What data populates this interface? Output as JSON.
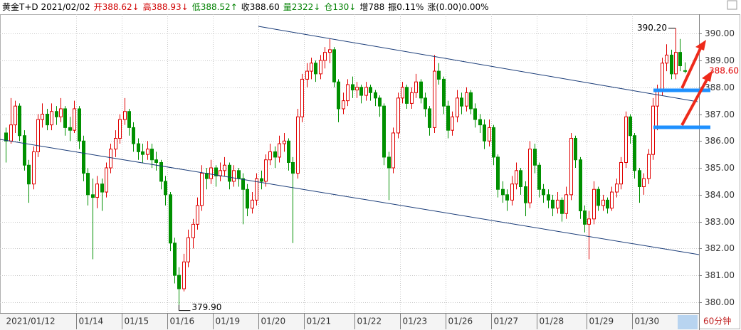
{
  "chart_data": {
    "type": "candlestick",
    "header": [
      {
        "text": "黄金T+D 2021/02/02",
        "color": "#000000"
      },
      {
        "text": "开388.62↓",
        "color": "#d00000"
      },
      {
        "text": "高388.93↓",
        "color": "#d00000"
      },
      {
        "text": "低388.52↑",
        "color": "#008000"
      },
      {
        "text": "收388.60",
        "color": "#000000"
      },
      {
        "text": "量2322↓",
        "color": "#008000"
      },
      {
        "text": "仓130↓",
        "color": "#008000"
      },
      {
        "text": "增788",
        "color": "#000000"
      },
      {
        "text": "振0.11%",
        "color": "#000000"
      },
      {
        "text": "涨(0.00)0.00%",
        "color": "#000000"
      }
    ],
    "period": "60分钟",
    "high_label": "390.20",
    "low_label": "379.90",
    "last_price_label": "388.60",
    "up_color": "#e00000",
    "down_color": "#009000",
    "ylim": [
      379.6,
      390.72
    ],
    "yticks": [
      {
        "value": 380,
        "label": "380.00"
      },
      {
        "value": 381,
        "label": "381.00"
      },
      {
        "value": 382,
        "label": "382.00"
      },
      {
        "value": 383,
        "label": "383.00"
      },
      {
        "value": 384,
        "label": "384.00"
      },
      {
        "value": 385,
        "label": "385.00"
      },
      {
        "value": 386,
        "label": "386.00"
      },
      {
        "value": 387,
        "label": "387.00"
      },
      {
        "value": 388,
        "label": "388.00"
      },
      {
        "value": 389,
        "label": "389.00"
      },
      {
        "value": 390,
        "label": "390.00"
      }
    ],
    "grid": true,
    "categories": [
      "2021/01/12",
      null,
      null,
      null,
      null,
      null,
      null,
      null,
      null,
      null,
      null,
      null,
      null,
      null,
      null,
      null,
      "01/14",
      null,
      null,
      null,
      null,
      null,
      null,
      null,
      null,
      null,
      "01/15",
      null,
      null,
      null,
      null,
      null,
      null,
      null,
      null,
      null,
      "01/16",
      null,
      null,
      null,
      null,
      null,
      null,
      null,
      null,
      null,
      "01/19",
      null,
      null,
      null,
      null,
      null,
      null,
      null,
      null,
      null,
      "01/20",
      null,
      null,
      null,
      null,
      null,
      null,
      null,
      null,
      null,
      "01/21",
      null,
      null,
      null,
      null,
      null,
      null,
      null,
      null,
      null,
      null,
      "01/22",
      null,
      null,
      null,
      null,
      null,
      null,
      null,
      null,
      null,
      "01/23",
      null,
      null,
      null,
      null,
      null,
      null,
      null,
      null,
      null,
      "01/26",
      null,
      null,
      null,
      null,
      null,
      null,
      null,
      null,
      null,
      "01/27",
      null,
      null,
      null,
      null,
      null,
      null,
      null,
      null,
      null,
      "01/28",
      null,
      null,
      null,
      null,
      null,
      null,
      null,
      null,
      null,
      null,
      "01/29",
      null,
      null,
      null,
      null,
      null,
      null,
      null,
      null,
      null,
      "01/30",
      null,
      null,
      null,
      null,
      null,
      null,
      null,
      null,
      null,
      null,
      null
    ],
    "ohlc": [
      [
        386.3,
        386.5,
        385.2,
        386.0
      ],
      [
        386.0,
        387.6,
        385.9,
        386.6
      ],
      [
        386.6,
        387.5,
        386.3,
        387.3
      ],
      [
        387.3,
        387.4,
        386.0,
        386.2
      ],
      [
        386.2,
        386.4,
        384.9,
        385.1
      ],
      [
        385.1,
        385.3,
        383.7,
        384.4
      ],
      [
        384.4,
        385.8,
        384.2,
        385.6
      ],
      [
        385.6,
        387.0,
        385.4,
        386.8
      ],
      [
        386.8,
        387.4,
        386.5,
        387.0
      ],
      [
        387.0,
        387.2,
        386.4,
        386.6
      ],
      [
        386.6,
        387.4,
        386.4,
        387.1
      ],
      [
        387.1,
        387.3,
        386.6,
        386.9
      ],
      [
        386.9,
        387.6,
        386.7,
        387.2
      ],
      [
        387.2,
        387.3,
        386.2,
        386.5
      ],
      [
        386.5,
        386.9,
        386.0,
        386.4
      ],
      [
        386.4,
        387.5,
        386.3,
        387.2
      ],
      [
        387.2,
        387.3,
        385.7,
        386.0
      ],
      [
        386.0,
        386.2,
        384.5,
        384.8
      ],
      [
        384.8,
        385.0,
        383.6,
        384.0
      ],
      [
        384.0,
        384.6,
        381.6,
        383.9
      ],
      [
        383.9,
        384.7,
        383.5,
        384.4
      ],
      [
        384.4,
        384.6,
        383.4,
        384.1
      ],
      [
        384.1,
        385.2,
        383.9,
        385.0
      ],
      [
        385.0,
        385.9,
        384.8,
        385.7
      ],
      [
        385.7,
        386.4,
        385.4,
        386.1
      ],
      [
        386.1,
        387.0,
        385.9,
        386.8
      ],
      [
        386.8,
        387.6,
        386.6,
        387.1
      ],
      [
        387.1,
        387.2,
        386.2,
        386.5
      ],
      [
        386.5,
        386.7,
        385.6,
        385.9
      ],
      [
        385.9,
        386.1,
        385.3,
        385.6
      ],
      [
        385.6,
        385.9,
        385.2,
        385.5
      ],
      [
        385.5,
        386.0,
        385.3,
        385.7
      ],
      [
        385.7,
        385.9,
        385.0,
        385.3
      ],
      [
        385.3,
        385.6,
        384.9,
        385.2
      ],
      [
        385.2,
        385.3,
        384.2,
        384.5
      ],
      [
        384.5,
        384.7,
        383.6,
        384.0
      ],
      [
        384.0,
        384.1,
        381.9,
        382.2
      ],
      [
        382.2,
        382.4,
        380.7,
        381.0
      ],
      [
        381.0,
        381.3,
        379.9,
        380.5
      ],
      [
        380.5,
        381.8,
        380.4,
        381.5
      ],
      [
        381.5,
        382.7,
        381.3,
        382.4
      ],
      [
        382.4,
        383.1,
        382.0,
        382.9
      ],
      [
        382.9,
        383.9,
        382.7,
        383.6
      ],
      [
        383.6,
        385.1,
        383.4,
        384.8
      ],
      [
        384.8,
        385.0,
        384.2,
        384.6
      ],
      [
        384.6,
        385.3,
        384.4,
        385.0
      ],
      [
        385.0,
        385.1,
        384.3,
        384.7
      ],
      [
        384.7,
        385.2,
        384.5,
        384.9
      ],
      [
        384.9,
        385.4,
        384.7,
        385.1
      ],
      [
        385.1,
        385.2,
        384.2,
        384.5
      ],
      [
        384.5,
        385.1,
        384.3,
        384.9
      ],
      [
        384.9,
        385.0,
        384.3,
        384.6
      ],
      [
        384.6,
        384.8,
        382.9,
        384.2
      ],
      [
        384.2,
        384.4,
        383.2,
        383.5
      ],
      [
        383.5,
        384.1,
        383.3,
        383.8
      ],
      [
        383.8,
        384.8,
        383.6,
        384.6
      ],
      [
        384.6,
        384.9,
        384.2,
        384.5
      ],
      [
        384.5,
        385.5,
        384.3,
        385.3
      ],
      [
        385.3,
        385.9,
        385.1,
        385.6
      ],
      [
        385.6,
        385.8,
        385.0,
        385.4
      ],
      [
        385.4,
        386.2,
        385.2,
        385.9
      ],
      [
        385.9,
        386.3,
        385.6,
        386.0
      ],
      [
        386.0,
        386.1,
        384.9,
        385.2
      ],
      [
        385.2,
        385.4,
        382.2,
        384.8
      ],
      [
        384.8,
        387.2,
        384.6,
        386.9
      ],
      [
        386.9,
        388.5,
        386.7,
        388.3
      ],
      [
        388.3,
        388.9,
        388.0,
        388.6
      ],
      [
        388.6,
        389.1,
        388.3,
        388.9
      ],
      [
        388.9,
        389.0,
        388.2,
        388.5
      ],
      [
        388.5,
        389.2,
        388.3,
        389.0
      ],
      [
        389.0,
        389.5,
        388.7,
        389.3
      ],
      [
        389.3,
        389.8,
        388.9,
        389.4
      ],
      [
        389.4,
        389.5,
        388.0,
        388.2
      ],
      [
        388.2,
        388.3,
        386.7,
        387.2
      ],
      [
        387.2,
        387.8,
        387.0,
        387.5
      ],
      [
        387.5,
        388.3,
        387.3,
        388.1
      ],
      [
        388.1,
        388.4,
        387.6,
        387.9
      ],
      [
        387.9,
        388.2,
        387.6,
        388.0
      ],
      [
        388.0,
        388.1,
        387.4,
        387.7
      ],
      [
        387.7,
        388.2,
        387.5,
        388.0
      ],
      [
        388.0,
        388.1,
        387.5,
        387.8
      ],
      [
        387.8,
        387.9,
        387.3,
        387.6
      ],
      [
        387.6,
        387.7,
        386.9,
        387.3
      ],
      [
        387.3,
        387.4,
        385.1,
        385.4
      ],
      [
        385.4,
        385.6,
        383.8,
        385.0
      ],
      [
        385.0,
        386.5,
        384.8,
        386.3
      ],
      [
        386.3,
        387.8,
        386.1,
        387.6
      ],
      [
        387.6,
        388.2,
        387.4,
        388.0
      ],
      [
        388.0,
        388.1,
        387.2,
        387.4
      ],
      [
        387.4,
        388.0,
        387.2,
        387.8
      ],
      [
        387.8,
        388.5,
        387.6,
        388.2
      ],
      [
        388.2,
        388.3,
        387.4,
        387.6
      ],
      [
        387.6,
        387.8,
        386.9,
        387.2
      ],
      [
        387.2,
        387.3,
        386.2,
        386.5
      ],
      [
        386.5,
        389.2,
        386.3,
        388.6
      ],
      [
        388.6,
        388.9,
        388.1,
        388.3
      ],
      [
        388.3,
        388.4,
        387.0,
        387.3
      ],
      [
        387.3,
        387.5,
        386.1,
        386.4
      ],
      [
        386.4,
        387.1,
        386.2,
        386.9
      ],
      [
        386.9,
        387.9,
        386.7,
        387.6
      ],
      [
        387.6,
        387.8,
        387.0,
        387.3
      ],
      [
        387.3,
        388.0,
        387.1,
        387.8
      ],
      [
        387.8,
        387.9,
        387.0,
        387.2
      ],
      [
        387.2,
        387.4,
        386.5,
        386.8
      ],
      [
        386.8,
        387.0,
        386.3,
        386.6
      ],
      [
        386.6,
        386.8,
        385.7,
        386.0
      ],
      [
        386.0,
        386.8,
        385.8,
        386.5
      ],
      [
        386.5,
        386.6,
        385.1,
        385.4
      ],
      [
        385.4,
        385.5,
        383.9,
        384.2
      ],
      [
        384.2,
        384.5,
        383.7,
        384.0
      ],
      [
        384.0,
        384.2,
        383.4,
        383.8
      ],
      [
        383.8,
        384.7,
        383.6,
        384.4
      ],
      [
        384.4,
        385.2,
        384.2,
        384.9
      ],
      [
        384.9,
        385.0,
        384.0,
        384.3
      ],
      [
        384.3,
        384.5,
        383.2,
        383.7
      ],
      [
        383.7,
        386.0,
        383.5,
        385.7
      ],
      [
        385.7,
        385.9,
        384.8,
        385.1
      ],
      [
        385.1,
        385.2,
        383.9,
        384.2
      ],
      [
        384.2,
        384.4,
        383.7,
        384.0
      ],
      [
        384.0,
        384.2,
        383.5,
        383.8
      ],
      [
        383.8,
        384.0,
        383.2,
        383.5
      ],
      [
        383.5,
        384.1,
        383.3,
        383.8
      ],
      [
        383.8,
        383.9,
        383.0,
        383.3
      ],
      [
        383.3,
        384.3,
        383.1,
        384.0
      ],
      [
        384.0,
        386.3,
        383.8,
        386.1
      ],
      [
        386.1,
        386.2,
        385.0,
        385.3
      ],
      [
        385.3,
        385.4,
        383.1,
        383.4
      ],
      [
        383.4,
        383.6,
        382.6,
        382.9
      ],
      [
        382.9,
        383.4,
        381.6,
        383.1
      ],
      [
        383.1,
        384.5,
        382.9,
        384.2
      ],
      [
        384.2,
        384.3,
        383.4,
        383.6
      ],
      [
        383.6,
        384.0,
        383.4,
        383.8
      ],
      [
        383.8,
        383.9,
        383.3,
        383.5
      ],
      [
        383.5,
        384.3,
        383.4,
        384.1
      ],
      [
        384.1,
        384.6,
        383.9,
        384.4
      ],
      [
        384.4,
        385.4,
        384.2,
        385.2
      ],
      [
        385.2,
        387.1,
        385.0,
        386.9
      ],
      [
        386.9,
        387.0,
        385.9,
        386.2
      ],
      [
        386.2,
        386.3,
        384.6,
        384.9
      ],
      [
        384.9,
        385.0,
        383.7,
        384.3
      ],
      [
        384.3,
        384.8,
        384.0,
        384.6
      ],
      [
        384.6,
        385.7,
        384.4,
        385.5
      ],
      [
        385.5,
        387.6,
        385.3,
        387.3
      ],
      [
        387.3,
        388.1,
        386.4,
        387.9
      ],
      [
        387.9,
        389.1,
        387.7,
        388.9
      ],
      [
        388.9,
        389.6,
        388.6,
        389.2
      ],
      [
        389.2,
        389.4,
        388.3,
        388.5
      ],
      [
        388.5,
        390.2,
        388.3,
        389.3
      ],
      [
        389.3,
        389.8,
        388.6,
        388.8
      ],
      [
        388.62,
        388.93,
        388.52,
        388.6
      ]
    ]
  }
}
